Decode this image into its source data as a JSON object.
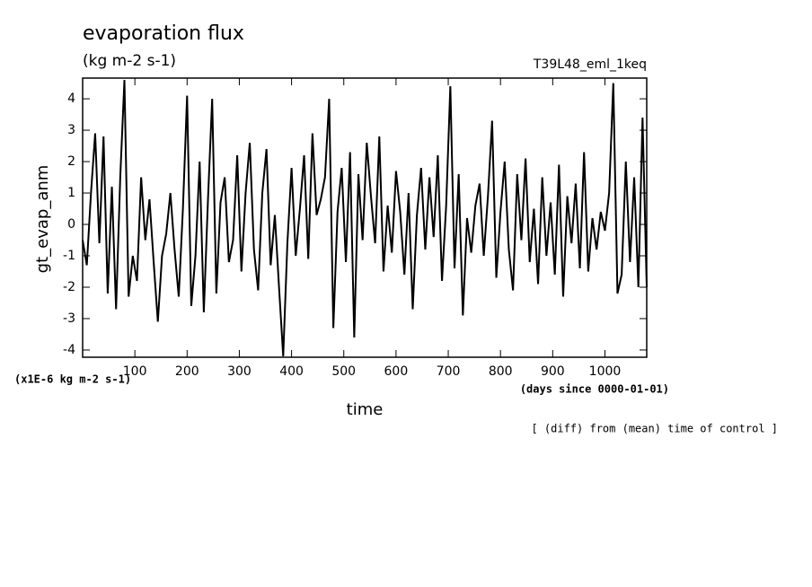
{
  "chart_data": {
    "type": "line",
    "title": "evaporation flux",
    "subtitle": "(kg m-2 s-1)",
    "run_label": "T39L48_eml_1keq",
    "y_label": "gt_evap_anm",
    "y_unit_label": "(x1E-6 kg m-2 s-1)",
    "x_label": "time",
    "x_unit_label": "(days since 0000-01-01)",
    "annotation": "[ (diff) from (mean) time of control ]",
    "xlim": [
      0,
      1080
    ],
    "ylim": [
      -4.23,
      4.66
    ],
    "xticks": [
      100,
      200,
      300,
      400,
      500,
      600,
      700,
      800,
      900,
      1000
    ],
    "yticks": [
      -4,
      -3,
      -2,
      -1,
      0,
      1,
      2,
      3,
      4
    ],
    "x": [
      0,
      8,
      16,
      24,
      32,
      40,
      48,
      56,
      64,
      72,
      80,
      88,
      96,
      104,
      112,
      120,
      128,
      136,
      144,
      152,
      160,
      168,
      176,
      184,
      192,
      200,
      208,
      216,
      224,
      232,
      240,
      248,
      256,
      264,
      272,
      280,
      288,
      296,
      304,
      312,
      320,
      328,
      336,
      344,
      352,
      360,
      368,
      376,
      384,
      392,
      400,
      408,
      416,
      424,
      432,
      440,
      448,
      456,
      464,
      472,
      480,
      488,
      496,
      504,
      512,
      520,
      528,
      536,
      544,
      552,
      560,
      568,
      576,
      584,
      592,
      600,
      608,
      616,
      624,
      632,
      640,
      648,
      656,
      664,
      672,
      680,
      688,
      696,
      704,
      712,
      720,
      728,
      736,
      744,
      752,
      760,
      768,
      776,
      784,
      792,
      800,
      808,
      816,
      824,
      832,
      840,
      848,
      856,
      864,
      872,
      880,
      888,
      896,
      904,
      912,
      920,
      928,
      936,
      944,
      952,
      960,
      968,
      976,
      984,
      992,
      1000,
      1008,
      1016,
      1024,
      1032,
      1040,
      1048,
      1056,
      1064,
      1072,
      1080
    ],
    "series": [
      {
        "name": "gt_evap_anm",
        "color": "#000000",
        "values": [
          -0.5,
          -1.3,
          1.0,
          2.9,
          -0.6,
          2.8,
          -2.2,
          1.2,
          -2.7,
          1.5,
          4.6,
          -2.3,
          -1.0,
          -1.8,
          1.5,
          -0.5,
          0.8,
          -1.2,
          -3.1,
          -1.0,
          -0.3,
          1.0,
          -0.8,
          -2.3,
          0.5,
          4.1,
          -2.6,
          -1.0,
          2.0,
          -2.8,
          0.8,
          4.0,
          -2.2,
          0.7,
          1.5,
          -1.2,
          -0.5,
          2.2,
          -1.5,
          1.0,
          2.6,
          -0.8,
          -2.1,
          1.0,
          2.4,
          -1.3,
          0.3,
          -2.0,
          -4.2,
          -0.6,
          1.8,
          -1.0,
          0.5,
          2.2,
          -1.1,
          2.9,
          0.3,
          0.8,
          1.5,
          4.0,
          -3.3,
          0.4,
          1.8,
          -1.2,
          2.3,
          -3.6,
          1.6,
          -0.5,
          2.6,
          0.9,
          -0.6,
          2.8,
          -1.5,
          0.6,
          -0.9,
          1.7,
          0.4,
          -1.6,
          1.0,
          -2.7,
          0.3,
          1.8,
          -0.8,
          1.5,
          -0.4,
          2.2,
          -1.8,
          0.6,
          4.4,
          -1.4,
          1.6,
          -2.9,
          0.2,
          -0.9,
          0.6,
          1.3,
          -1.0,
          0.9,
          3.3,
          -1.7,
          0.4,
          2.0,
          -0.8,
          -2.1,
          1.6,
          -0.5,
          2.1,
          -1.2,
          0.5,
          -1.9,
          1.5,
          -1.0,
          0.7,
          -1.6,
          1.9,
          -2.3,
          0.9,
          -0.6,
          1.3,
          -1.4,
          2.3,
          -1.5,
          0.2,
          -0.8,
          0.4,
          -0.2,
          1.0,
          4.5,
          -2.2,
          -1.6,
          2.0,
          -1.2,
          1.5,
          -2.0,
          3.4,
          -2.0
        ]
      }
    ]
  }
}
